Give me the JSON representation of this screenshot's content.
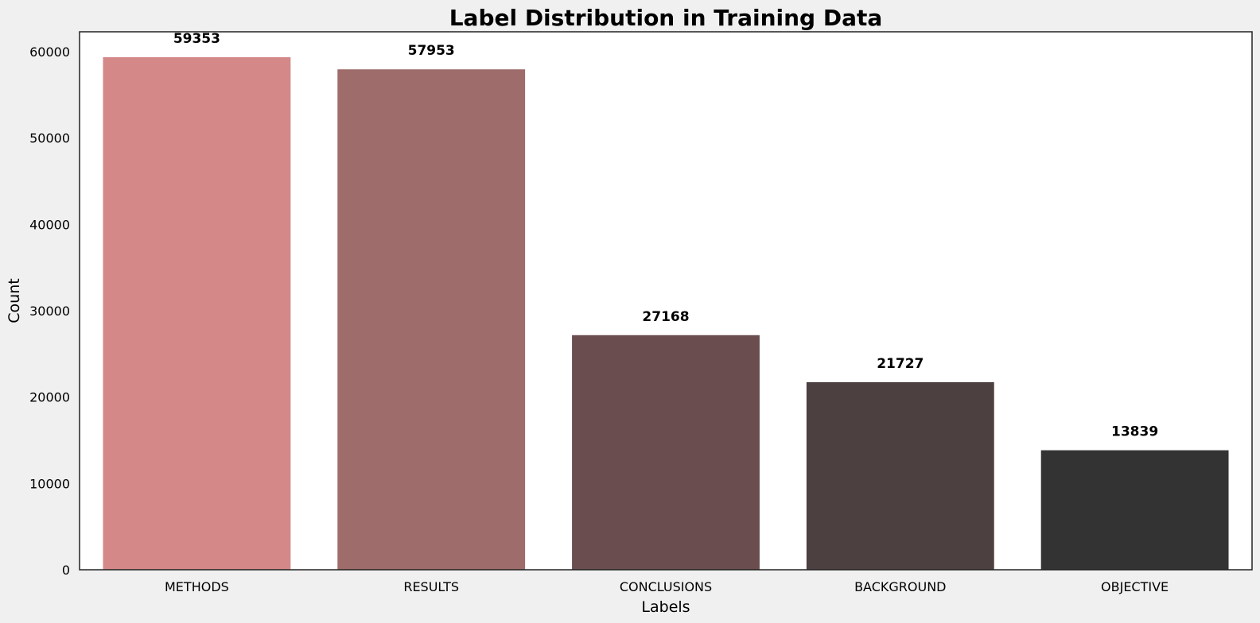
{
  "chart_data": {
    "type": "bar",
    "title": "Label Distribution in Training Data",
    "xlabel": "Labels",
    "ylabel": "Count",
    "categories": [
      "METHODS",
      "RESULTS",
      "CONCLUSIONS",
      "BACKGROUND",
      "OBJECTIVE"
    ],
    "values": [
      59353,
      57953,
      27168,
      21727,
      13839
    ],
    "data_labels": [
      "59353",
      "57953",
      "27168",
      "21727",
      "13839"
    ],
    "colors": [
      "#d48888",
      "#9e6c6a",
      "#6a4e4f",
      "#4d4040",
      "#333333"
    ],
    "ylim": [
      0,
      62300
    ],
    "yticks": [
      0,
      10000,
      20000,
      30000,
      40000,
      50000,
      60000
    ],
    "ytick_labels": [
      "0",
      "10000",
      "20000",
      "30000",
      "40000",
      "50000",
      "60000"
    ],
    "grid": false,
    "legend": "none",
    "figure_background": "#f0f0f0",
    "axes_background": "#ffffff"
  }
}
